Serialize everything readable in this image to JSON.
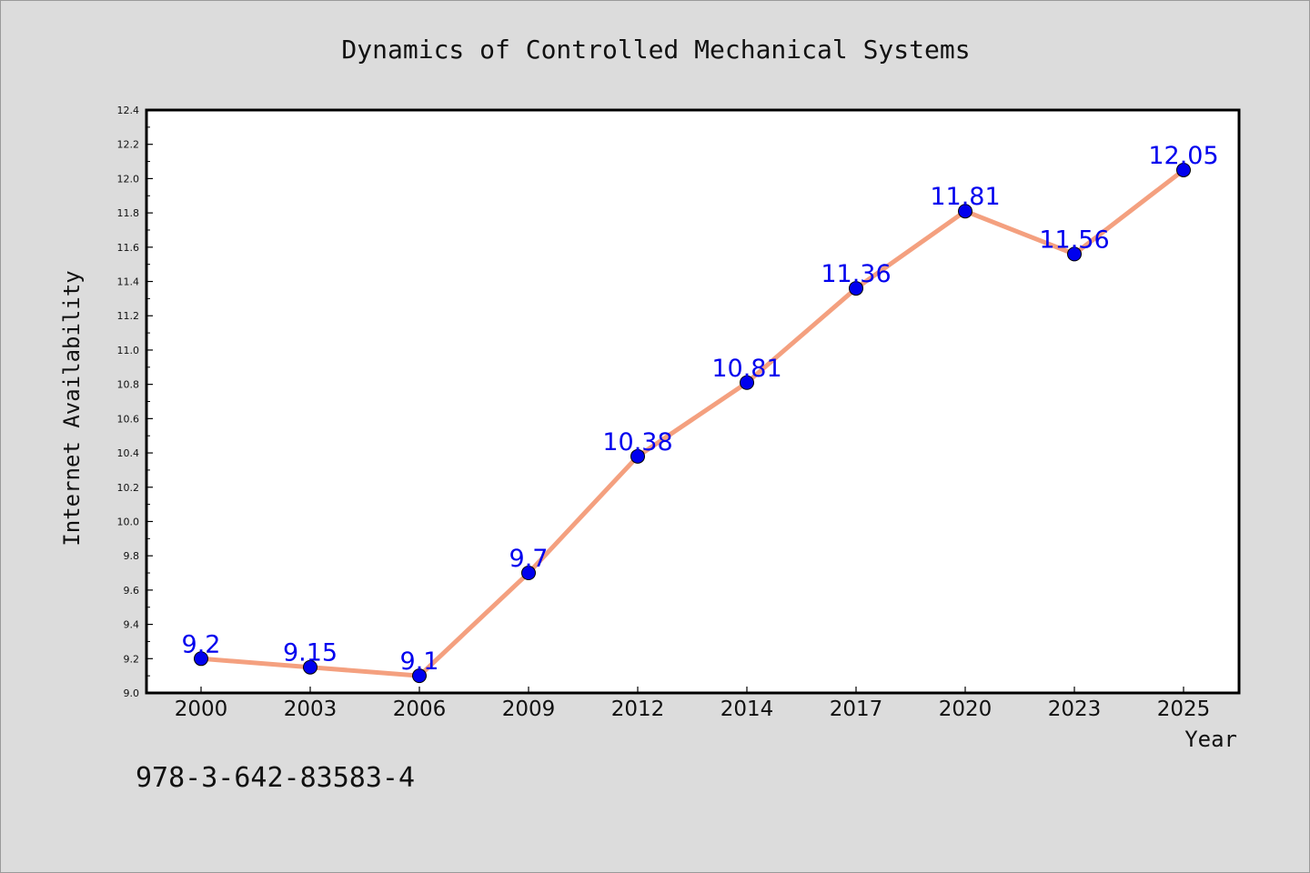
{
  "chart_data": {
    "type": "line",
    "title": "Dynamics of Controlled Mechanical Systems",
    "xlabel": "Year",
    "ylabel": "Internet Availability",
    "categories": [
      "2000",
      "2003",
      "2006",
      "2009",
      "2012",
      "2014",
      "2017",
      "2020",
      "2023",
      "2025"
    ],
    "series": [
      {
        "values": [
          9.2,
          9.15,
          9.1,
          9.7,
          10.38,
          10.81,
          11.36,
          11.81,
          11.56,
          12.05
        ],
        "data_labels": [
          "9.2",
          "9.15",
          "9.1",
          "9.7",
          "10.38",
          "10.81",
          "11.36",
          "11.81",
          "11.56",
          "12.05"
        ]
      }
    ],
    "ylim": [
      9.0,
      12.4
    ],
    "yticks": [
      "9.0",
      "9.2",
      "9.4",
      "9.6",
      "9.8",
      "10.0",
      "10.2",
      "10.4",
      "10.6",
      "10.8",
      "11.0",
      "11.2",
      "11.4",
      "11.6",
      "11.8",
      "12.0",
      "12.2",
      "12.4"
    ],
    "grid": false,
    "legend": "none",
    "colors": {
      "line": "#f4a07f",
      "marker": "#0000ee",
      "label": "#0000ee",
      "plot_background": "#ffffff",
      "page_background": "#dcdcdc"
    }
  },
  "annotation": "978-3-642-83583-4"
}
